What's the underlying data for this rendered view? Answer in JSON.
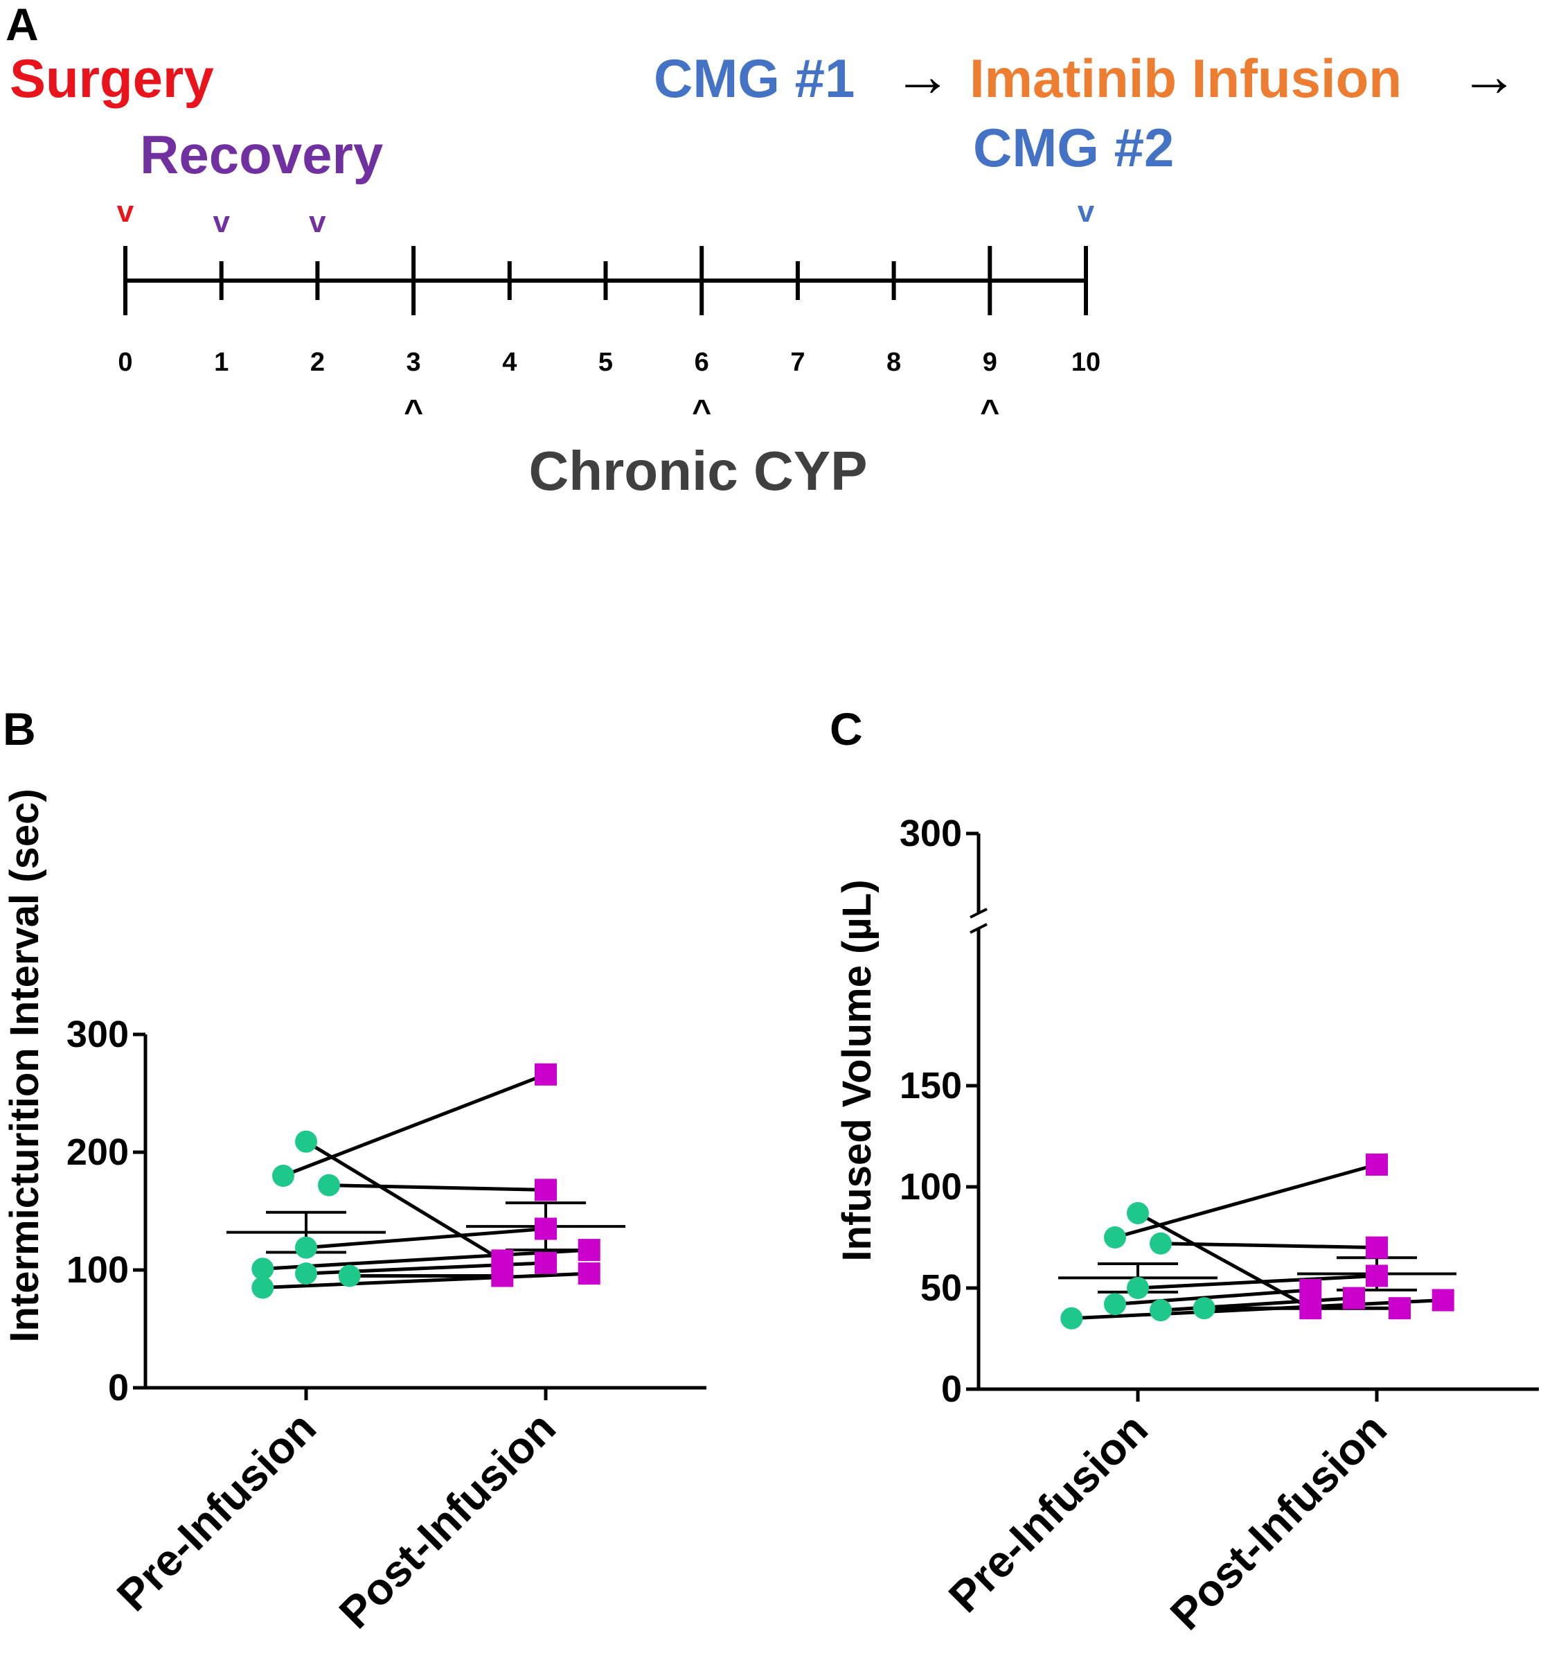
{
  "panel_a": {
    "label": "A",
    "surgery": "Surgery",
    "recovery": "Recovery",
    "cmg1": "CMG #1",
    "arrow": "→",
    "imatinib": "Imatinib Infusion",
    "cmg2": "CMG #2",
    "mark_down": "v",
    "mark_up": "^",
    "cyp_label": "Chronic CYP",
    "days": [
      0,
      1,
      2,
      3,
      4,
      5,
      6,
      7,
      8,
      9,
      10
    ],
    "day_labels": [
      "0",
      "1",
      "2",
      "3",
      "4",
      "5",
      "6",
      "7",
      "8",
      "9",
      "10"
    ],
    "major_ticks": [
      0,
      3,
      6,
      9,
      10
    ],
    "surgery_marks": [
      0
    ],
    "recovery_marks": [
      1,
      2
    ],
    "cmg2_marks": [
      10
    ],
    "cyp_marks": [
      3,
      6,
      9
    ],
    "colors": {
      "surgery": "#e8131b",
      "recovery": "#7030a0",
      "cmg": "#4472c4",
      "imatinib": "#ed7d31",
      "cyp": "#404040",
      "axis": "#000000"
    }
  },
  "chart_data": [
    {
      "panel": "B",
      "type": "scatter",
      "title": "",
      "categories": [
        "Pre-Infusion",
        "Post-Infusion"
      ],
      "ylabel": "Intermicturition Interval (sec)",
      "ylim": [
        0,
        300
      ],
      "yticks": [
        0,
        100,
        200,
        300
      ],
      "ytick_labels": [
        "0",
        "100",
        "200",
        "300"
      ],
      "pre_color": "#1ec88a",
      "post_color": "#cc00cc",
      "pre": [
        {
          "offset": -0.1,
          "y": 180
        },
        {
          "offset": 0.0,
          "y": 209
        },
        {
          "offset": 0.1,
          "y": 172
        },
        {
          "offset": 0.0,
          "y": 119
        },
        {
          "offset": -0.19,
          "y": 101
        },
        {
          "offset": 0.0,
          "y": 97
        },
        {
          "offset": 0.19,
          "y": 95
        },
        {
          "offset": -0.19,
          "y": 85
        }
      ],
      "post": [
        {
          "offset": 0.0,
          "y": 266
        },
        {
          "offset": -0.19,
          "y": 108
        },
        {
          "offset": 0.0,
          "y": 168
        },
        {
          "offset": 0.0,
          "y": 135
        },
        {
          "offset": 0.19,
          "y": 117
        },
        {
          "offset": 0.0,
          "y": 106
        },
        {
          "offset": -0.19,
          "y": 95
        },
        {
          "offset": 0.19,
          "y": 97
        }
      ],
      "pre_mean": 132,
      "pre_sem": 17,
      "post_mean": 137,
      "post_sem": 20
    },
    {
      "panel": "C",
      "type": "scatter",
      "title": "",
      "categories": [
        "Pre-Infusion",
        "Post-Infusion"
      ],
      "ylabel": "Infused Volume (µL)",
      "ylim": [
        0,
        300
      ],
      "axis_break": [
        150,
        300
      ],
      "yticks": [
        0,
        50,
        100,
        150,
        300
      ],
      "ytick_labels": [
        "0",
        "50",
        "100",
        "150",
        "300"
      ],
      "pre_color": "#1ec88a",
      "post_color": "#cc00cc",
      "pre": [
        {
          "offset": -0.1,
          "y": 75
        },
        {
          "offset": 0.0,
          "y": 87
        },
        {
          "offset": 0.1,
          "y": 72
        },
        {
          "offset": 0.0,
          "y": 50
        },
        {
          "offset": -0.1,
          "y": 42
        },
        {
          "offset": 0.1,
          "y": 39
        },
        {
          "offset": 0.29,
          "y": 40
        },
        {
          "offset": -0.29,
          "y": 35
        }
      ],
      "post": [
        {
          "offset": 0.0,
          "y": 111
        },
        {
          "offset": -0.29,
          "y": 40
        },
        {
          "offset": 0.0,
          "y": 70
        },
        {
          "offset": 0.0,
          "y": 56
        },
        {
          "offset": -0.29,
          "y": 49
        },
        {
          "offset": -0.1,
          "y": 45
        },
        {
          "offset": 0.1,
          "y": 40
        },
        {
          "offset": 0.29,
          "y": 44
        }
      ],
      "pre_mean": 55,
      "pre_sem": 7,
      "post_mean": 57,
      "post_sem": 8
    }
  ],
  "panel_b_label": "B",
  "panel_c_label": "C"
}
